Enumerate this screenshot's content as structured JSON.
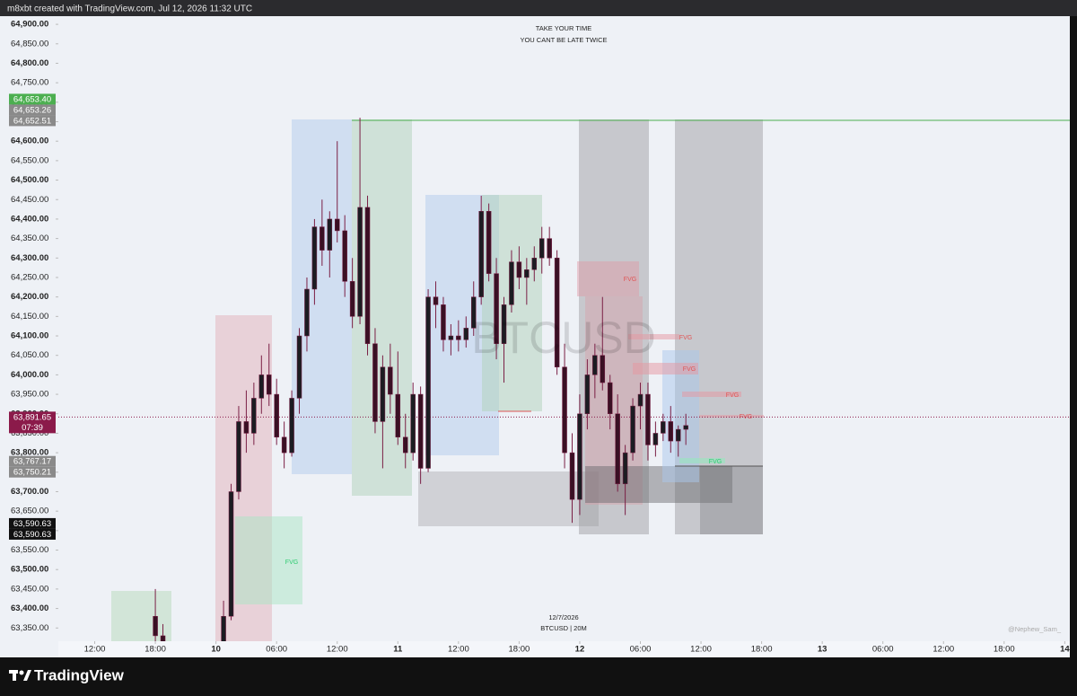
{
  "header_text": "m8xbt created with TradingView.com, Jul 12, 2026 11:32 UTC",
  "brand": "TradingView",
  "chart_data": {
    "type": "candlestick",
    "notes": [
      "TAKE YOUR TIME",
      "YOU CANT BE LATE TWICE"
    ],
    "watermark": "BTCUSD",
    "date_label": "12/7/2026",
    "symbol_label": "BTCUSD | 20M",
    "credit": "@Nephew_Sam_",
    "up_color": "#1c1c22",
    "down_color": "#3a1024",
    "wick_color": "#7a1f45",
    "xlim": [
      8.4,
      108.5
    ],
    "ylim": [
      63316,
      64921
    ],
    "xticks": [
      {
        "value": 12,
        "label": "12:00"
      },
      {
        "value": 18,
        "label": "18:00"
      },
      {
        "value": 24,
        "label": "10"
      },
      {
        "value": 30,
        "label": "06:00"
      },
      {
        "value": 36,
        "label": "12:00"
      },
      {
        "value": 42,
        "label": "11"
      },
      {
        "value": 48,
        "label": "12:00"
      },
      {
        "value": 54,
        "label": "18:00"
      },
      {
        "value": 60,
        "label": "12"
      },
      {
        "value": 66,
        "label": "06:00"
      },
      {
        "value": 72,
        "label": "12:00"
      },
      {
        "value": 78,
        "label": "18:00"
      },
      {
        "value": 84,
        "label": "13"
      },
      {
        "value": 90,
        "label": "06:00"
      },
      {
        "value": 96,
        "label": "12:00"
      },
      {
        "value": 102,
        "label": "18:00"
      },
      {
        "value": 108,
        "label": "14"
      }
    ],
    "yticks": [
      {
        "value": 64900,
        "label": "64,900.00"
      },
      {
        "value": 64850,
        "label": "64,850.00"
      },
      {
        "value": 64800,
        "label": "64,800.00"
      },
      {
        "value": 64750,
        "label": "64,750.00"
      },
      {
        "value": 64700,
        "label": "64,700.00"
      },
      {
        "value": 64650,
        "label": "64,650.00"
      },
      {
        "value": 64600,
        "label": "64,600.00"
      },
      {
        "value": 64550,
        "label": "64,550.00"
      },
      {
        "value": 64500,
        "label": "64,500.00"
      },
      {
        "value": 64450,
        "label": "64,450.00"
      },
      {
        "value": 64400,
        "label": "64,400.00"
      },
      {
        "value": 64350,
        "label": "64,350.00"
      },
      {
        "value": 64300,
        "label": "64,300.00"
      },
      {
        "value": 64250,
        "label": "64,250.00"
      },
      {
        "value": 64200,
        "label": "64,200.00"
      },
      {
        "value": 64150,
        "label": "64,150.00"
      },
      {
        "value": 64100,
        "label": "64,100.00"
      },
      {
        "value": 64050,
        "label": "64,050.00"
      },
      {
        "value": 64000,
        "label": "64,000.00"
      },
      {
        "value": 63950,
        "label": "63,950.00"
      },
      {
        "value": 63900,
        "label": "63,900.00"
      },
      {
        "value": 63850,
        "label": "63,850.00"
      },
      {
        "value": 63800,
        "label": "63,800.00"
      },
      {
        "value": 63750,
        "label": "63,750.00"
      },
      {
        "value": 63700,
        "label": "63,700.00"
      },
      {
        "value": 63650,
        "label": "63,650.00"
      },
      {
        "value": 63600,
        "label": "63,600.00"
      },
      {
        "value": 63550,
        "label": "63,550.00"
      },
      {
        "value": 63500,
        "label": "63,500.00"
      },
      {
        "value": 63450,
        "label": "63,450.00"
      },
      {
        "value": 63400,
        "label": "63,400.00"
      },
      {
        "value": 63350,
        "label": "63,350.00"
      }
    ],
    "price_markers": [
      {
        "value": 64653.4,
        "label": "64,653.40",
        "color": "#4caf50"
      },
      {
        "value": 64653.26,
        "label": "64,653.26",
        "color": "#8a8a8a"
      },
      {
        "value": 64652.51,
        "label": "64,652.51",
        "color": "#8a8a8a"
      },
      {
        "value": 63891.65,
        "label": "63,891.65",
        "countdown": "07:39",
        "color": "#8b1a4a"
      },
      {
        "value": 63767.17,
        "label": "63,767.17",
        "color": "#8a8a8a"
      },
      {
        "value": 63750.21,
        "label": "63,750.21",
        "color": "#8a8a8a"
      },
      {
        "value": 63590.63,
        "label": "63,590.63",
        "color": "#111111"
      },
      {
        "value": 63590.63,
        "label": "63,590.63",
        "color": "#111111"
      }
    ],
    "zone_labels": [
      {
        "text": "FVG",
        "color": "#e05555"
      },
      {
        "text": "FVG",
        "color": "#e05555"
      },
      {
        "text": "FVG",
        "color": "#e05555"
      },
      {
        "text": "FVG",
        "color": "#e05555"
      },
      {
        "text": "FVG",
        "color": "#e05555"
      },
      {
        "text": "FVG",
        "color": "#2ecc71"
      },
      {
        "text": "FVG",
        "color": "#2ecc71"
      }
    ],
    "x": [
      18,
      18.75,
      24.75,
      25.5,
      26.25,
      27,
      27.75,
      28.5,
      29.25,
      30,
      30.75,
      31.5,
      32.25,
      33,
      33.75,
      34.5,
      35.25,
      36,
      36.75,
      37.5,
      38.25,
      39,
      39.75,
      40.5,
      41.25,
      42,
      42.75,
      43.5,
      44.25,
      45,
      45.75,
      46.5,
      47.25,
      48,
      48.75,
      49.5,
      50.25,
      51,
      51.75,
      52.5,
      53.25,
      54,
      54.75,
      55.5,
      56.25,
      57,
      57.75,
      58.5,
      59.25,
      60,
      60.75,
      61.5,
      62.25,
      63,
      63.75,
      64.5,
      65.25,
      66,
      66.75,
      67.5,
      68.25,
      69,
      69.75,
      70.5
    ],
    "open": [
      63380,
      63330,
      63300,
      63380,
      63700,
      63880,
      63850,
      63940,
      64000,
      63950,
      63840,
      63800,
      63940,
      64100,
      64220,
      64380,
      64320,
      64400,
      64370,
      64240,
      64150,
      64430,
      64080,
      63880,
      64020,
      63950,
      63840,
      63800,
      63950,
      63760,
      64200,
      64180,
      64090,
      64100,
      64090,
      64120,
      64200,
      64420,
      64260,
      64080,
      64180,
      64290,
      64250,
      64270,
      64300,
      64350,
      64300,
      64020,
      63800,
      63680,
      63900,
      64000,
      64050,
      63980,
      63900,
      63720,
      63800,
      63920,
      63950,
      63820,
      63850,
      63880,
      63830,
      63860
    ],
    "high": [
      63450,
      63360,
      63420,
      63720,
      63920,
      63960,
      63980,
      64050,
      64080,
      63990,
      63880,
      63960,
      64120,
      64250,
      64400,
      64450,
      64420,
      64600,
      64410,
      64300,
      64660,
      64460,
      64120,
      64050,
      64080,
      64060,
      63900,
      63980,
      63970,
      64220,
      64240,
      64200,
      64130,
      64140,
      64150,
      64240,
      64460,
      64440,
      64300,
      64200,
      64320,
      64330,
      64300,
      64330,
      64380,
      64380,
      64320,
      64080,
      63850,
      63950,
      64040,
      64080,
      64200,
      64000,
      63950,
      63820,
      63940,
      63980,
      63980,
      63880,
      63900,
      63920,
      63870,
      63900
    ],
    "low": [
      63300,
      63280,
      63280,
      63370,
      63680,
      63800,
      63820,
      63900,
      63920,
      63820,
      63760,
      63790,
      63900,
      64060,
      64180,
      64280,
      64250,
      64340,
      64200,
      64120,
      64130,
      64050,
      63850,
      63760,
      63900,
      63820,
      63760,
      63780,
      63720,
      63750,
      64120,
      64060,
      64050,
      64060,
      64070,
      64100,
      64180,
      64240,
      64040,
      63980,
      64160,
      64220,
      64180,
      64240,
      64260,
      64280,
      64000,
      63760,
      63620,
      63640,
      63860,
      63940,
      63960,
      63860,
      63700,
      63640,
      63780,
      63860,
      63780,
      63790,
      63830,
      63800,
      63790,
      63820
    ],
    "close": [
      63330,
      63300,
      63380,
      63700,
      63880,
      63850,
      63940,
      64000,
      63950,
      63840,
      63800,
      63940,
      64100,
      64220,
      64380,
      64320,
      64400,
      64370,
      64240,
      64150,
      64430,
      64080,
      63880,
      64020,
      63950,
      63840,
      63800,
      63950,
      63760,
      64200,
      64180,
      64090,
      64100,
      64090,
      64120,
      64200,
      64420,
      64260,
      64080,
      64180,
      64290,
      64250,
      64270,
      64300,
      64350,
      64300,
      64020,
      63800,
      63680,
      63900,
      64000,
      64050,
      63980,
      63900,
      63720,
      63800,
      63920,
      63950,
      63820,
      63850,
      63880,
      63830,
      63860,
      63870
    ]
  }
}
